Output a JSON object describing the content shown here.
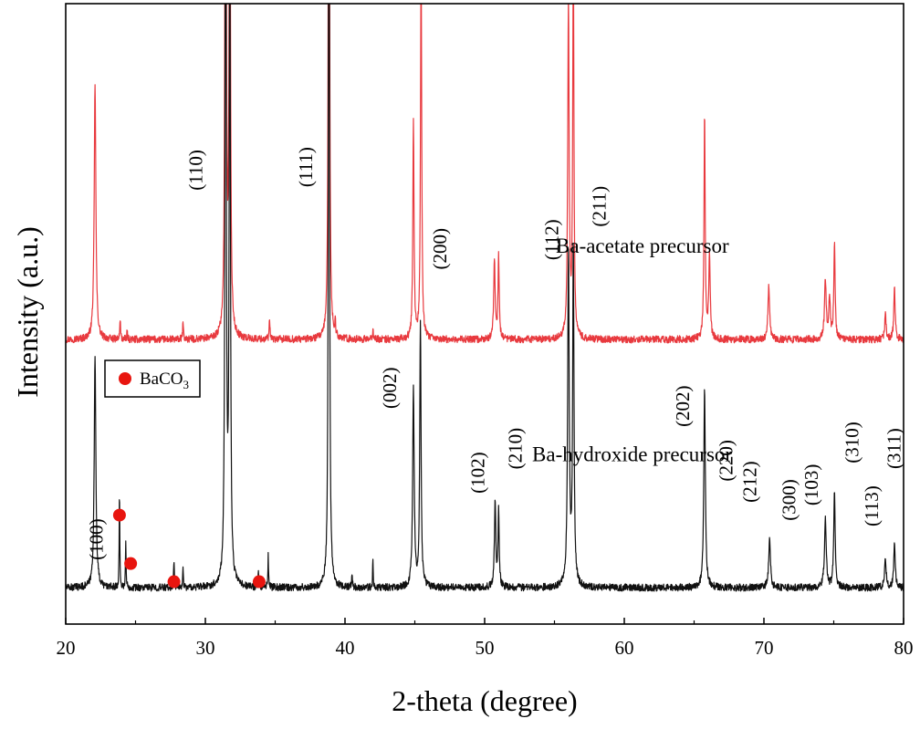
{
  "chart_data": {
    "type": "line",
    "title": "",
    "xlabel": "2-theta (degree)",
    "ylabel": "Intensity (a.u.)",
    "xlim": [
      20,
      80
    ],
    "xticks": [
      20,
      30,
      40,
      50,
      60,
      70,
      80
    ],
    "yticks_shown": false,
    "colors": {
      "acetate": "#e8393e",
      "hydroxide": "#111111",
      "marker": "#e8150f"
    },
    "series": [
      {
        "name": "Ba-acetate precursor",
        "key": "acetate",
        "baseline": 0.94,
        "noise": 0.012,
        "peaks": [
          [
            22.1,
            0.85,
            0.14
          ],
          [
            23.9,
            0.07,
            0.06
          ],
          [
            24.4,
            0.03,
            0.05
          ],
          [
            28.4,
            0.06,
            0.06
          ],
          [
            31.45,
            2.6,
            0.1
          ],
          [
            31.75,
            2.1,
            0.1
          ],
          [
            34.6,
            0.07,
            0.06
          ],
          [
            38.85,
            2.8,
            0.09
          ],
          [
            39.3,
            0.05,
            0.06
          ],
          [
            42.0,
            0.04,
            0.06
          ],
          [
            44.9,
            0.72,
            0.1
          ],
          [
            45.45,
            1.28,
            0.1
          ],
          [
            50.7,
            0.26,
            0.12
          ],
          [
            51.0,
            0.27,
            0.1
          ],
          [
            56.0,
            1.11,
            0.12
          ],
          [
            56.35,
            1.3,
            0.1
          ],
          [
            65.75,
            0.75,
            0.1
          ],
          [
            66.1,
            0.28,
            0.12
          ],
          [
            70.35,
            0.18,
            0.14
          ],
          [
            74.4,
            0.2,
            0.14
          ],
          [
            74.7,
            0.14,
            0.12
          ],
          [
            75.05,
            0.32,
            0.11
          ],
          [
            78.7,
            0.08,
            0.12
          ],
          [
            79.35,
            0.17,
            0.12
          ]
        ]
      },
      {
        "name": "Ba-hydroxide precursor",
        "key": "hydroxide",
        "baseline": 0.12,
        "noise": 0.012,
        "peaks": [
          [
            22.1,
            0.77,
            0.14
          ],
          [
            23.85,
            0.33,
            0.05
          ],
          [
            24.3,
            0.16,
            0.05
          ],
          [
            27.75,
            0.09,
            0.06
          ],
          [
            28.4,
            0.06,
            0.06
          ],
          [
            31.45,
            2.8,
            0.1
          ],
          [
            31.75,
            2.3,
            0.1
          ],
          [
            33.8,
            0.05,
            0.05
          ],
          [
            34.5,
            0.11,
            0.05
          ],
          [
            38.85,
            2.9,
            0.09
          ],
          [
            40.5,
            0.04,
            0.06
          ],
          [
            42.0,
            0.1,
            0.05
          ],
          [
            44.9,
            0.65,
            0.13
          ],
          [
            45.4,
            0.88,
            0.11
          ],
          [
            50.75,
            0.28,
            0.12
          ],
          [
            51.0,
            0.25,
            0.1
          ],
          [
            56.0,
            1.1,
            0.13
          ],
          [
            56.35,
            1.13,
            0.11
          ],
          [
            65.75,
            0.66,
            0.13
          ],
          [
            70.4,
            0.16,
            0.15
          ],
          [
            74.4,
            0.23,
            0.15
          ],
          [
            75.05,
            0.33,
            0.12
          ],
          [
            78.7,
            0.1,
            0.13
          ],
          [
            79.35,
            0.14,
            0.13
          ]
        ]
      }
    ],
    "peak_labels": [
      {
        "text": "(100)",
        "x": 22.2,
        "y": 0.28
      },
      {
        "text": "(110)",
        "x": 29.3,
        "y": 1.5
      },
      {
        "text": "(111)",
        "x": 37.2,
        "y": 1.51
      },
      {
        "text": "(002)",
        "x": 43.2,
        "y": 0.78
      },
      {
        "text": "(200)",
        "x": 46.8,
        "y": 1.24
      },
      {
        "text": "(102)",
        "x": 49.5,
        "y": 0.5
      },
      {
        "text": "(210)",
        "x": 52.2,
        "y": 0.58
      },
      {
        "text": "(112)",
        "x": 54.8,
        "y": 1.27
      },
      {
        "text": "(211)",
        "x": 58.2,
        "y": 1.38
      },
      {
        "text": "(202)",
        "x": 64.2,
        "y": 0.72
      },
      {
        "text": "(220)",
        "x": 67.3,
        "y": 0.54
      },
      {
        "text": "(212)",
        "x": 69.0,
        "y": 0.47
      },
      {
        "text": "(300)",
        "x": 71.8,
        "y": 0.41
      },
      {
        "text": "(103)",
        "x": 73.4,
        "y": 0.46
      },
      {
        "text": "(310)",
        "x": 76.3,
        "y": 0.6
      },
      {
        "text": "(113)",
        "x": 77.7,
        "y": 0.39
      },
      {
        "text": "(311)",
        "x": 79.3,
        "y": 0.58
      }
    ],
    "annotations": [
      {
        "text": "Ba-acetate precursor",
        "x": 55.1,
        "y": 1.25
      },
      {
        "text": "Ba-hydroxide precursor",
        "x": 53.4,
        "y": 0.56
      }
    ],
    "baco3_markers": [
      {
        "x": 23.85,
        "y": 0.36
      },
      {
        "x": 24.65,
        "y": 0.2
      },
      {
        "x": 27.75,
        "y": 0.14
      },
      {
        "x": 33.85,
        "y": 0.14
      }
    ],
    "legend": {
      "label_main": "BaCO",
      "label_sub": "3",
      "position": "upper-left"
    }
  }
}
